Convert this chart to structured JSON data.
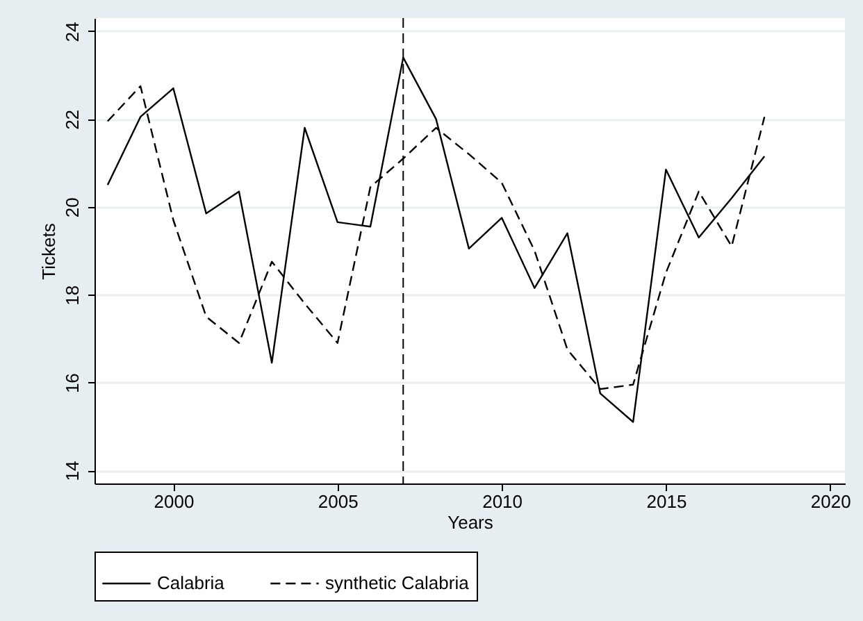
{
  "chart_data": {
    "type": "line",
    "xlabel": "Years",
    "ylabel": "Tickets",
    "x": [
      1998,
      1999,
      2000,
      2001,
      2002,
      2003,
      2004,
      2005,
      2006,
      2007,
      2008,
      2009,
      2010,
      2011,
      2012,
      2013,
      2014,
      2015,
      2016,
      2017,
      2018
    ],
    "series": [
      {
        "name": "Calabria",
        "color": "#000000",
        "line_style": "solid",
        "values": [
          20.5,
          22.05,
          22.7,
          19.85,
          20.35,
          16.45,
          21.8,
          19.65,
          19.55,
          23.4,
          22.0,
          19.05,
          19.75,
          18.15,
          19.4,
          15.75,
          15.1,
          20.85,
          19.3,
          20.2,
          21.15
        ]
      },
      {
        "name": "synthetic Calabria",
        "color": "#000000",
        "line_style": "dashed",
        "values": [
          21.95,
          22.75,
          19.7,
          17.5,
          16.9,
          18.75,
          17.8,
          16.9,
          20.45,
          21.1,
          21.8,
          21.2,
          20.55,
          19.0,
          16.75,
          15.85,
          15.95,
          18.5,
          20.35,
          19.1,
          22.05
        ]
      }
    ],
    "xlim": [
      1997.6,
      2020.45
    ],
    "xticks": [
      2000,
      2005,
      2010,
      2015,
      2020
    ],
    "ylim": [
      13.7,
      24.3
    ],
    "yticks": [
      14,
      16,
      18,
      20,
      22,
      24
    ],
    "grid": "y",
    "legend": "bottom",
    "marker": "none",
    "ref_lines": [
      {
        "axis": "x",
        "value": 2007,
        "color": "#000000",
        "line_style": "dashed"
      }
    ]
  }
}
